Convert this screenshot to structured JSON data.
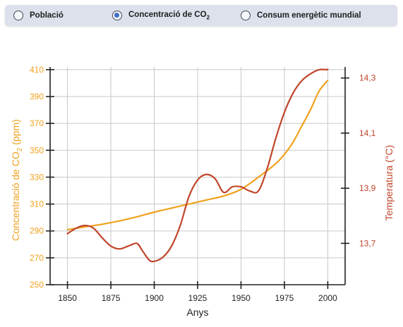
{
  "tabs": [
    {
      "label": "Població",
      "selected": false
    },
    {
      "label": "Concentració de CO",
      "sub": "2",
      "selected": true
    },
    {
      "label": "Consum energètic mundial",
      "selected": false
    }
  ],
  "colors": {
    "co2": "#f0a21e",
    "temperature": "#c0452a",
    "grid": "#c8c8c8",
    "axis": "#222222",
    "tabbar": "#dde1ec",
    "radio_selected": "#3d6fc4"
  },
  "chart_data": {
    "type": "line",
    "xlabel": "Anys",
    "ylabel_left": "Concentració de CO",
    "ylabel_left_sub": "2",
    "ylabel_left_unit": " (ppm)",
    "ylabel_right": "Temperatura (°C)",
    "x_ticks": [
      1850,
      1875,
      1900,
      1925,
      1950,
      1975,
      2000
    ],
    "xlim": [
      1840,
      2010
    ],
    "y_left_ticks": [
      250,
      270,
      290,
      310,
      330,
      350,
      370,
      390,
      410
    ],
    "y_left_lim": [
      250,
      412
    ],
    "y_right_ticks": [
      "13,7",
      "13,9",
      "14,1",
      "14,3"
    ],
    "y_right_tick_values": [
      13.7,
      13.9,
      14.1,
      14.3
    ],
    "y_right_lim": [
      13.55,
      14.34
    ],
    "grid": true,
    "series": [
      {
        "name": "CO2",
        "axis": "left",
        "x": [
          1850,
          1860,
          1870,
          1880,
          1890,
          1900,
          1910,
          1920,
          1930,
          1940,
          1950,
          1960,
          1970,
          1975,
          1980,
          1985,
          1990,
          1995,
          2000
        ],
        "y": [
          291,
          293,
          295,
          297.5,
          300.5,
          304,
          307,
          310,
          313,
          316,
          321,
          330,
          340,
          347,
          356,
          368,
          380,
          394,
          402
        ]
      },
      {
        "name": "Temperatura",
        "axis": "right",
        "x": [
          1850,
          1855,
          1860,
          1865,
          1870,
          1875,
          1880,
          1885,
          1890,
          1893,
          1897,
          1900,
          1905,
          1910,
          1915,
          1920,
          1925,
          1930,
          1935,
          1940,
          1945,
          1950,
          1955,
          1960,
          1965,
          1970,
          1975,
          1980,
          1985,
          1990,
          1995,
          2000
        ],
        "y": [
          13.735,
          13.755,
          13.765,
          13.755,
          13.72,
          13.69,
          13.68,
          13.69,
          13.7,
          13.675,
          13.64,
          13.635,
          13.65,
          13.69,
          13.765,
          13.87,
          13.93,
          13.95,
          13.935,
          13.885,
          13.905,
          13.905,
          13.89,
          13.89,
          13.97,
          14.08,
          14.175,
          14.245,
          14.29,
          14.315,
          14.33,
          14.33
        ]
      }
    ]
  }
}
